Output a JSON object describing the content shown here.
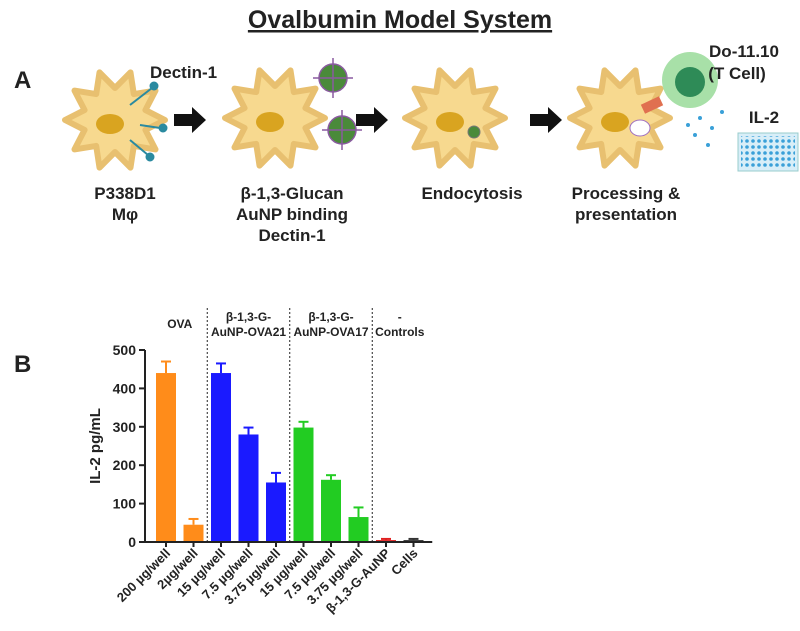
{
  "title": "Ovalbumin Model System",
  "panel_a": {
    "label": "A",
    "receptor": "Dectin-1",
    "t_cell": [
      "Do-11.10",
      "(T Cell)"
    ],
    "cytokine": "IL-2",
    "steps": [
      [
        "P338D1",
        "Mφ"
      ],
      [
        "β-1,3-Glucan",
        "AuNP binding",
        "Dectin-1"
      ],
      [
        "Endocytosis"
      ],
      [
        "Processing &",
        "presentation"
      ]
    ]
  },
  "chart_data": {
    "type": "bar",
    "panel_label": "B",
    "ylabel": "IL-2 pg/mL",
    "ylim": [
      0,
      500
    ],
    "yticks": [
      0,
      100,
      200,
      300,
      400,
      500
    ],
    "groups": [
      {
        "label": [
          "OVA"
        ],
        "categories": [
          "200 µg/well",
          "2µg/well"
        ],
        "values": [
          440,
          45
        ],
        "errors": [
          30,
          15
        ],
        "colors": [
          "#ff8c1a",
          "#ff8c1a"
        ]
      },
      {
        "label": [
          "β-1,3-G-",
          "AuNP-OVA21"
        ],
        "categories": [
          "15 µg/well",
          "7.5 µg/well",
          "3.75 µg/well"
        ],
        "values": [
          440,
          280,
          155
        ],
        "errors": [
          25,
          18,
          25
        ],
        "colors": [
          "#1a1aff",
          "#1a1aff",
          "#1a1aff"
        ]
      },
      {
        "label": [
          "β-1,3-G-",
          "AuNP-OVA17"
        ],
        "categories": [
          "15 µg/well",
          "7.5 µg/well",
          "3.75 µg/well"
        ],
        "values": [
          298,
          162,
          65
        ],
        "errors": [
          15,
          12,
          25
        ],
        "colors": [
          "#22cc22",
          "#22cc22",
          "#22cc22"
        ]
      },
      {
        "label": [
          "-",
          "Controls"
        ],
        "categories": [
          "β-1,3-G-AuNP",
          "Cells"
        ],
        "values": [
          5,
          5
        ],
        "errors": [
          3,
          3
        ],
        "colors": [
          "#e02020",
          "#333333"
        ]
      }
    ]
  }
}
